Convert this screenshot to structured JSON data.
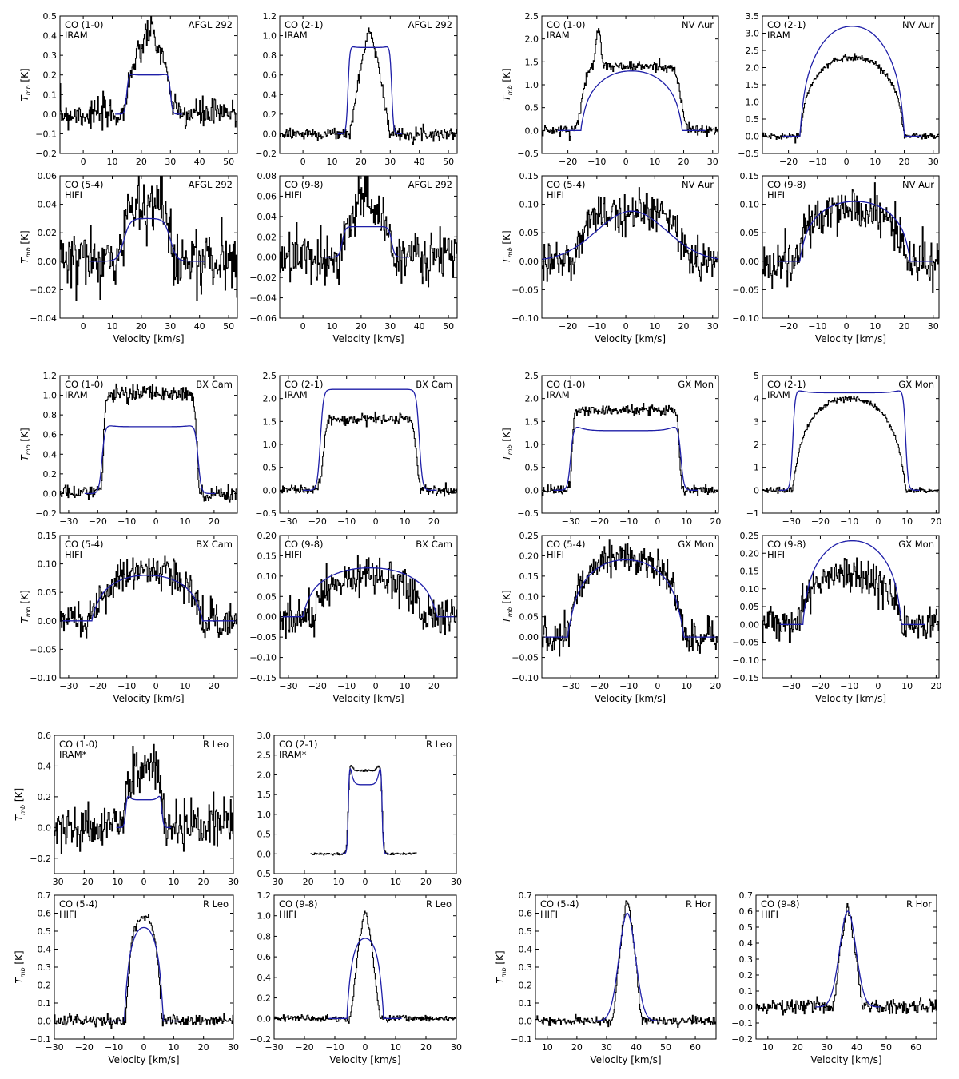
{
  "colors": {
    "observed": "#000000",
    "model": "#1f1fa8",
    "axis": "#000000"
  },
  "labels": {
    "velocity": "Velocity [km/s]",
    "tmb": "T_mb [K]"
  },
  "chart_data": [
    {
      "type": "line",
      "star": "AFGL 292",
      "line": "CO (1-0)",
      "telescope": "IRAM",
      "xlim": [
        -8,
        53
      ],
      "ylim": [
        -0.2,
        0.5
      ],
      "xticks": [
        0,
        10,
        20,
        30,
        40,
        50
      ],
      "yticks": [
        -0.2,
        -0.1,
        0.0,
        0.1,
        0.2,
        0.3,
        0.4,
        0.5
      ],
      "xlabel": "",
      "ylabel": "T_mb [K]",
      "series": [
        {
          "kind": "hist",
          "peak": 0.2,
          "center": 22.5,
          "half": 7.5,
          "edge": 1.0,
          "shape": "flat",
          "noise": 0.05,
          "bump": {
            "x": 23,
            "w": 3,
            "a": 0.22
          }
        },
        {
          "kind": "model",
          "peak": 0.2,
          "center": 22.5,
          "half": 7.5,
          "edge": 1.0,
          "shape": "flat",
          "horns": 0.1
        }
      ]
    },
    {
      "type": "line",
      "star": "AFGL 292",
      "line": "CO (2-1)",
      "telescope": "IRAM",
      "xlim": [
        -8,
        53
      ],
      "ylim": [
        -0.2,
        1.2
      ],
      "xticks": [
        0,
        10,
        20,
        30,
        40,
        50
      ],
      "yticks": [
        -0.2,
        0.0,
        0.2,
        0.4,
        0.6,
        0.8,
        1.0,
        1.2
      ],
      "xlabel": "",
      "ylabel": "",
      "series": [
        {
          "kind": "hist",
          "peak": 1.05,
          "center": 23,
          "half": 7,
          "edge": 2.5,
          "shape": "tri",
          "noise": 0.04
        },
        {
          "kind": "model",
          "peak": 0.88,
          "center": 23,
          "half": 7.5,
          "edge": 0.9,
          "shape": "flat",
          "horns": 0.05
        }
      ]
    },
    {
      "type": "line",
      "star": "NV Aur",
      "line": "CO (1-0)",
      "telescope": "IRAM",
      "xlim": [
        -29,
        32
      ],
      "ylim": [
        -0.5,
        2.5
      ],
      "xticks": [
        -20,
        -10,
        0,
        10,
        20,
        30
      ],
      "yticks": [
        -0.5,
        0.0,
        0.5,
        1.0,
        1.5,
        2.0,
        2.5
      ],
      "xlabel": "",
      "ylabel": "T_mb [K]",
      "series": [
        {
          "kind": "hist",
          "peak": 1.4,
          "center": 2,
          "half": 17,
          "edge": 2.5,
          "shape": "flat",
          "noise": 0.07,
          "bump": {
            "x": -9.5,
            "w": 0.8,
            "a": 0.9
          }
        },
        {
          "kind": "model",
          "peak": 1.3,
          "center": 2,
          "half": 17.5,
          "edge": 2.0,
          "shape": "round"
        }
      ]
    },
    {
      "type": "line",
      "star": "NV Aur",
      "line": "CO (2-1)",
      "telescope": "IRAM",
      "xlim": [
        -29,
        32
      ],
      "ylim": [
        -0.5,
        3.5
      ],
      "xticks": [
        -20,
        -10,
        0,
        10,
        20,
        30
      ],
      "yticks": [
        -0.5,
        0.0,
        0.5,
        1.0,
        1.5,
        2.0,
        2.5,
        3.0,
        3.5
      ],
      "xlabel": "",
      "ylabel": "",
      "series": [
        {
          "kind": "hist",
          "peak": 2.3,
          "center": 2,
          "half": 18,
          "edge": 2.0,
          "shape": "round",
          "noise": 0.06
        },
        {
          "kind": "model",
          "peak": 3.2,
          "center": 2,
          "half": 18,
          "edge": 1.5,
          "shape": "round"
        }
      ]
    },
    {
      "type": "line",
      "star": "AFGL 292",
      "line": "CO (5-4)",
      "telescope": "HIFI",
      "xlim": [
        -8,
        53
      ],
      "ylim": [
        -0.04,
        0.06
      ],
      "xticks": [
        0,
        10,
        20,
        30,
        40,
        50
      ],
      "yticks": [
        -0.04,
        -0.02,
        0.0,
        0.02,
        0.04,
        0.06
      ],
      "xlabel": "Velocity [km/s]",
      "ylabel": "T_mb [K]",
      "series": [
        {
          "kind": "hist",
          "peak": 0.04,
          "center": 22,
          "half": 8,
          "edge": 2,
          "shape": "flat",
          "noise": 0.014
        },
        {
          "kind": "model",
          "peak": 0.03,
          "center": 22,
          "half": 8,
          "edge": 3,
          "shape": "flat"
        }
      ]
    },
    {
      "type": "line",
      "star": "AFGL 292",
      "line": "CO (9-8)",
      "telescope": "HIFI",
      "xlim": [
        -8,
        53
      ],
      "ylim": [
        -0.06,
        0.08
      ],
      "xticks": [
        0,
        10,
        20,
        30,
        40,
        50
      ],
      "yticks": [
        -0.06,
        -0.04,
        -0.02,
        0.0,
        0.02,
        0.04,
        0.06,
        0.08
      ],
      "xlabel": "Velocity [km/s]",
      "ylabel": "",
      "series": [
        {
          "kind": "hist",
          "peak": 0.035,
          "center": 22,
          "half": 8,
          "edge": 1.5,
          "shape": "flat",
          "noise": 0.015,
          "bump": {
            "x": 21,
            "w": 2,
            "a": 0.03
          }
        },
        {
          "kind": "model",
          "peak": 0.03,
          "center": 22,
          "half": 8.5,
          "edge": 1.5,
          "shape": "flat"
        }
      ]
    },
    {
      "type": "line",
      "star": "NV Aur",
      "line": "CO (5-4)",
      "telescope": "HIFI",
      "xlim": [
        -29,
        32
      ],
      "ylim": [
        -0.1,
        0.15
      ],
      "xticks": [
        -20,
        -10,
        0,
        10,
        20,
        30
      ],
      "yticks": [
        -0.1,
        -0.05,
        0.0,
        0.05,
        0.1,
        0.15
      ],
      "xlabel": "Velocity [km/s]",
      "ylabel": "T_mb [K]",
      "series": [
        {
          "kind": "hist",
          "peak": 0.09,
          "center": 2,
          "half": 20,
          "edge": 4,
          "shape": "round",
          "noise": 0.022
        },
        {
          "kind": "model",
          "peak": 0.088,
          "center": 2,
          "half": 22,
          "edge": 3,
          "shape": "gauss"
        }
      ]
    },
    {
      "type": "line",
      "star": "NV Aur",
      "line": "CO (9-8)",
      "telescope": "HIFI",
      "xlim": [
        -29,
        32
      ],
      "ylim": [
        -0.1,
        0.15
      ],
      "xticks": [
        -20,
        -10,
        0,
        10,
        20,
        30
      ],
      "yticks": [
        -0.1,
        -0.05,
        0.0,
        0.05,
        0.1,
        0.15
      ],
      "xlabel": "Velocity [km/s]",
      "ylabel": "",
      "series": [
        {
          "kind": "hist",
          "peak": 0.09,
          "center": 2,
          "half": 19,
          "edge": 3,
          "shape": "round",
          "noise": 0.025
        },
        {
          "kind": "model",
          "peak": 0.105,
          "center": 3,
          "half": 19,
          "edge": 2,
          "shape": "round"
        }
      ]
    },
    {
      "type": "line",
      "star": "BX Cam",
      "line": "CO (1-0)",
      "telescope": "IRAM",
      "xlim": [
        -33,
        28
      ],
      "ylim": [
        -0.2,
        1.2
      ],
      "xticks": [
        -30,
        -20,
        -10,
        0,
        10,
        20
      ],
      "yticks": [
        -0.2,
        0.0,
        0.2,
        0.4,
        0.6,
        0.8,
        1.0,
        1.2
      ],
      "xlabel": "",
      "ylabel": "T_mb [K]",
      "series": [
        {
          "kind": "hist",
          "peak": 1.02,
          "center": -2,
          "half": 16,
          "edge": 1.0,
          "shape": "flat",
          "noise": 0.05
        },
        {
          "kind": "model",
          "peak": 0.68,
          "center": -2,
          "half": 16.5,
          "edge": 1.5,
          "shape": "flat",
          "horns": 0.05
        }
      ]
    },
    {
      "type": "line",
      "star": "BX Cam",
      "line": "CO (2-1)",
      "telescope": "IRAM",
      "xlim": [
        -33,
        28
      ],
      "ylim": [
        -0.5,
        2.5
      ],
      "xticks": [
        -30,
        -20,
        -10,
        0,
        10,
        20
      ],
      "yticks": [
        -0.5,
        0.0,
        0.5,
        1.0,
        1.5,
        2.0,
        2.5
      ],
      "xlabel": "",
      "ylabel": "",
      "series": [
        {
          "kind": "hist",
          "peak": 1.55,
          "center": -2,
          "half": 16,
          "edge": 1.5,
          "shape": "flat",
          "noise": 0.07
        },
        {
          "kind": "model",
          "peak": 2.2,
          "center": -2,
          "half": 17,
          "edge": 1.5,
          "shape": "flat"
        }
      ]
    },
    {
      "type": "line",
      "star": "GX Mon",
      "line": "CO (1-0)",
      "telescope": "IRAM",
      "xlim": [
        -40,
        21
      ],
      "ylim": [
        -0.5,
        2.5
      ],
      "xticks": [
        -30,
        -20,
        -10,
        0,
        10,
        20
      ],
      "yticks": [
        -0.5,
        0.0,
        0.5,
        1.0,
        1.5,
        2.0,
        2.5
      ],
      "xlabel": "",
      "ylabel": "T_mb [K]",
      "series": [
        {
          "kind": "hist",
          "peak": 1.75,
          "center": -11,
          "half": 18.5,
          "edge": 1.0,
          "shape": "flat",
          "noise": 0.07
        },
        {
          "kind": "model",
          "peak": 1.3,
          "center": -11,
          "half": 19,
          "edge": 1.5,
          "shape": "flat",
          "horns": 0.15
        }
      ]
    },
    {
      "type": "line",
      "star": "GX Mon",
      "line": "CO (2-1)",
      "telescope": "IRAM",
      "xlim": [
        -40,
        21
      ],
      "ylim": [
        -1,
        5
      ],
      "xticks": [
        -30,
        -20,
        -10,
        0,
        10,
        20
      ],
      "yticks": [
        -1,
        0,
        1,
        2,
        3,
        4,
        5
      ],
      "xlabel": "",
      "ylabel": "",
      "series": [
        {
          "kind": "hist",
          "peak": 4.0,
          "center": -10,
          "half": 19.5,
          "edge": 3,
          "shape": "round",
          "noise": 0.08
        },
        {
          "kind": "model",
          "peak": 4.25,
          "center": -10,
          "half": 19.5,
          "edge": 1.2,
          "shape": "flat",
          "horns": 0.05
        }
      ]
    },
    {
      "type": "line",
      "star": "BX Cam",
      "line": "CO (5-4)",
      "telescope": "HIFI",
      "xlim": [
        -33,
        28
      ],
      "ylim": [
        -0.1,
        0.15
      ],
      "xticks": [
        -30,
        -20,
        -10,
        0,
        10,
        20
      ],
      "yticks": [
        -0.1,
        -0.05,
        0.0,
        0.05,
        0.1,
        0.15
      ],
      "xlabel": "Velocity [km/s]",
      "ylabel": "T_mb [K]",
      "series": [
        {
          "kind": "hist",
          "peak": 0.09,
          "center": -3,
          "half": 19,
          "edge": 4,
          "shape": "round",
          "noise": 0.02
        },
        {
          "kind": "model",
          "peak": 0.08,
          "center": -3,
          "half": 19,
          "edge": 3,
          "shape": "round"
        }
      ]
    },
    {
      "type": "line",
      "star": "BX Cam",
      "line": "CO (9-8)",
      "telescope": "HIFI",
      "xlim": [
        -33,
        28
      ],
      "ylim": [
        -0.15,
        0.2
      ],
      "xticks": [
        -30,
        -20,
        -10,
        0,
        10,
        20
      ],
      "yticks": [
        -0.15,
        -0.1,
        -0.05,
        0.0,
        0.05,
        0.1,
        0.15,
        0.2
      ],
      "xlabel": "Velocity [km/s]",
      "ylabel": "",
      "series": [
        {
          "kind": "hist",
          "peak": 0.1,
          "center": -3,
          "half": 19,
          "edge": 4,
          "shape": "round",
          "noise": 0.03
        },
        {
          "kind": "model",
          "peak": 0.12,
          "center": -2,
          "half": 23,
          "edge": 3,
          "shape": "round"
        }
      ]
    },
    {
      "type": "line",
      "star": "GX Mon",
      "line": "CO (5-4)",
      "telescope": "HIFI",
      "xlim": [
        -40,
        21
      ],
      "ylim": [
        -0.1,
        0.25
      ],
      "xticks": [
        -30,
        -20,
        -10,
        0,
        10,
        20
      ],
      "yticks": [
        -0.1,
        -0.05,
        0.0,
        0.05,
        0.1,
        0.15,
        0.2,
        0.25
      ],
      "xlabel": "Velocity [km/s]",
      "ylabel": "T_mb [K]",
      "series": [
        {
          "kind": "hist",
          "peak": 0.2,
          "center": -11,
          "half": 20,
          "edge": 3,
          "shape": "round",
          "noise": 0.025
        },
        {
          "kind": "model",
          "peak": 0.19,
          "center": -11,
          "half": 20,
          "edge": 3,
          "shape": "round"
        }
      ]
    },
    {
      "type": "line",
      "star": "GX Mon",
      "line": "CO (9-8)",
      "telescope": "HIFI",
      "xlim": [
        -40,
        21
      ],
      "ylim": [
        -0.15,
        0.25
      ],
      "xticks": [
        -30,
        -20,
        -10,
        0,
        10,
        20
      ],
      "yticks": [
        -0.15,
        -0.1,
        -0.05,
        0.0,
        0.05,
        0.1,
        0.15,
        0.2,
        0.25
      ],
      "xlabel": "Velocity [km/s]",
      "ylabel": "",
      "series": [
        {
          "kind": "hist",
          "peak": 0.14,
          "center": -10,
          "half": 18,
          "edge": 3,
          "shape": "round",
          "noise": 0.03
        },
        {
          "kind": "model",
          "peak": 0.235,
          "center": -9,
          "half": 17,
          "edge": 2,
          "shape": "round"
        }
      ]
    },
    {
      "type": "line",
      "star": "R Leo",
      "line": "CO (1-0)",
      "telescope": "IRAM*",
      "xlim": [
        -30,
        30
      ],
      "ylim": [
        -0.3,
        0.6
      ],
      "xticks": [
        -30,
        -20,
        -10,
        0,
        10,
        20,
        30
      ],
      "yticks": [
        -0.2,
        0.0,
        0.2,
        0.4,
        0.6
      ],
      "xlabel": "",
      "ylabel": "T_mb [K]",
      "series": [
        {
          "kind": "hist",
          "peak": 0.38,
          "center": 0,
          "half": 6,
          "edge": 0.8,
          "shape": "flat",
          "noise": 0.1
        },
        {
          "kind": "model",
          "peak": 0.18,
          "center": 0,
          "half": 6,
          "edge": 0.8,
          "shape": "flat",
          "horns": 0.45
        }
      ]
    },
    {
      "type": "line",
      "star": "R Leo",
      "line": "CO (2-1)",
      "telescope": "IRAM*",
      "xlim": [
        -30,
        30
      ],
      "ylim": [
        -0.5,
        3.0
      ],
      "xticks": [
        -30,
        -20,
        -10,
        0,
        10,
        20,
        30
      ],
      "yticks": [
        -0.5,
        0.0,
        0.5,
        1.0,
        1.5,
        2.0,
        2.5,
        3.0
      ],
      "xlabel": "",
      "ylabel": "",
      "range": [
        -18,
        17
      ],
      "series": [
        {
          "kind": "hist",
          "peak": 2.1,
          "center": 0,
          "half": 5.5,
          "edge": 0.8,
          "shape": "flat",
          "noise": 0.02,
          "hornsHist": 0.3
        },
        {
          "kind": "model",
          "peak": 1.75,
          "center": 0,
          "half": 5.5,
          "edge": 0.6,
          "shape": "flat",
          "horns": 0.6
        }
      ]
    },
    {
      "type": "line",
      "star": "R Leo",
      "line": "CO (5-4)",
      "telescope": "HIFI",
      "xlim": [
        -30,
        30
      ],
      "ylim": [
        -0.1,
        0.7
      ],
      "xticks": [
        -30,
        -20,
        -10,
        0,
        10,
        20,
        30
      ],
      "yticks": [
        -0.1,
        0.0,
        0.1,
        0.2,
        0.3,
        0.4,
        0.5,
        0.6,
        0.7
      ],
      "xlabel": "Velocity [km/s]",
      "ylabel": "T_mb [K]",
      "series": [
        {
          "kind": "hist",
          "peak": 0.58,
          "center": 0,
          "half": 6,
          "edge": 2,
          "shape": "round",
          "noise": 0.02
        },
        {
          "kind": "model",
          "peak": 0.52,
          "center": 0,
          "half": 6.5,
          "edge": 1.5,
          "shape": "round"
        }
      ]
    },
    {
      "type": "line",
      "star": "R Leo",
      "line": "CO (9-8)",
      "telescope": "HIFI",
      "xlim": [
        -30,
        30
      ],
      "ylim": [
        -0.2,
        1.2
      ],
      "xticks": [
        -30,
        -20,
        -10,
        0,
        10,
        20,
        30
      ],
      "yticks": [
        -0.2,
        0.0,
        0.2,
        0.4,
        0.6,
        0.8,
        1.0,
        1.2
      ],
      "xlabel": "Velocity [km/s]",
      "ylabel": "",
      "series": [
        {
          "kind": "hist",
          "peak": 1.05,
          "center": 0,
          "half": 5,
          "edge": 2,
          "shape": "tri",
          "noise": 0.02
        },
        {
          "kind": "model",
          "peak": 0.78,
          "center": 0,
          "half": 6,
          "edge": 1.5,
          "shape": "round"
        }
      ]
    },
    {
      "type": "line",
      "star": "R Hor",
      "line": "CO (5-4)",
      "telescope": "HIFI",
      "xlim": [
        6,
        67
      ],
      "ylim": [
        -0.1,
        0.7
      ],
      "xticks": [
        10,
        20,
        30,
        40,
        50,
        60
      ],
      "yticks": [
        -0.1,
        0.0,
        0.1,
        0.2,
        0.3,
        0.4,
        0.5,
        0.6,
        0.7
      ],
      "xlabel": "Velocity [km/s]",
      "ylabel": "T_mb [K]",
      "series": [
        {
          "kind": "hist",
          "peak": 0.67,
          "center": 37,
          "half": 5,
          "edge": 2,
          "shape": "tri",
          "noise": 0.015
        },
        {
          "kind": "model",
          "peak": 0.6,
          "center": 37,
          "half": 5,
          "edge": 1.5,
          "shape": "gauss"
        }
      ]
    },
    {
      "type": "line",
      "star": "R Hor",
      "line": "CO (9-8)",
      "telescope": "HIFI",
      "xlim": [
        6,
        67
      ],
      "ylim": [
        -0.2,
        0.7
      ],
      "xticks": [
        10,
        20,
        30,
        40,
        50,
        60
      ],
      "yticks": [
        -0.2,
        -0.1,
        0.0,
        0.1,
        0.2,
        0.3,
        0.4,
        0.5,
        0.6,
        0.7
      ],
      "xlabel": "Velocity [km/s]",
      "ylabel": "",
      "series": [
        {
          "kind": "hist",
          "peak": 0.62,
          "center": 37,
          "half": 5,
          "edge": 2,
          "shape": "tri",
          "noise": 0.03
        },
        {
          "kind": "model",
          "peak": 0.6,
          "center": 37,
          "half": 5,
          "edge": 1.5,
          "shape": "gauss"
        }
      ]
    }
  ]
}
